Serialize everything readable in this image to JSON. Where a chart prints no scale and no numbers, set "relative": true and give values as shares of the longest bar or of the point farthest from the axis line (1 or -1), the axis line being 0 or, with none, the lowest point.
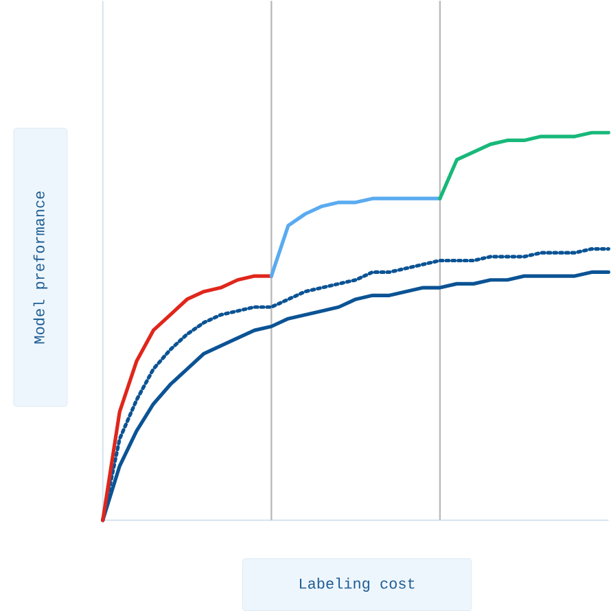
{
  "chart_data": {
    "type": "line",
    "relative": true,
    "xlabel": "Labeling cost",
    "ylabel": "Model preformance",
    "categories": [
      null,
      null,
      null,
      null,
      null,
      null,
      null,
      null,
      null,
      null,
      null,
      null,
      null,
      null,
      null,
      null,
      null,
      null,
      null,
      null,
      null,
      null,
      null,
      null,
      null,
      null,
      null,
      null,
      null,
      null,
      null
    ],
    "series": [
      {
        "color": "#e0261b",
        "values": [
          0,
          0.28,
          0.41,
          0.49,
          0.53,
          0.57,
          0.59,
          0.6,
          0.62,
          0.63,
          0.63,
          null,
          null,
          null,
          null,
          null,
          null,
          null,
          null,
          null,
          null,
          null,
          null,
          null,
          null,
          null,
          null,
          null,
          null,
          null,
          null
        ]
      },
      {
        "color": "#5aabf0",
        "values": [
          null,
          null,
          null,
          null,
          null,
          null,
          null,
          null,
          null,
          null,
          0.63,
          0.76,
          0.79,
          0.81,
          0.82,
          0.82,
          0.83,
          0.83,
          0.83,
          0.83,
          0.83,
          null,
          null,
          null,
          null,
          null,
          null,
          null,
          null,
          null,
          null
        ]
      },
      {
        "color": "#18b87a",
        "values": [
          null,
          null,
          null,
          null,
          null,
          null,
          null,
          null,
          null,
          null,
          null,
          null,
          null,
          null,
          null,
          null,
          null,
          null,
          null,
          null,
          0.83,
          0.93,
          0.95,
          0.97,
          0.98,
          0.98,
          0.99,
          0.99,
          0.99,
          1.0,
          1.0
        ]
      },
      {
        "color": "#0b5394",
        "line_style": "dotted",
        "values": [
          0,
          0.21,
          0.31,
          0.39,
          0.44,
          0.48,
          0.51,
          0.53,
          0.54,
          0.55,
          0.55,
          0.57,
          0.59,
          0.6,
          0.61,
          0.62,
          0.64,
          0.64,
          0.65,
          0.66,
          0.67,
          0.67,
          0.67,
          0.68,
          0.68,
          0.68,
          0.69,
          0.69,
          0.69,
          0.7,
          0.7
        ]
      },
      {
        "color": "#0b5394",
        "line_style": "solid",
        "values": [
          0,
          0.14,
          0.23,
          0.3,
          0.35,
          0.39,
          0.43,
          0.45,
          0.47,
          0.49,
          0.5,
          0.52,
          0.53,
          0.54,
          0.55,
          0.57,
          0.58,
          0.58,
          0.59,
          0.6,
          0.6,
          0.61,
          0.61,
          0.62,
          0.62,
          0.63,
          0.63,
          0.63,
          0.63,
          0.64,
          0.64
        ]
      }
    ]
  }
}
